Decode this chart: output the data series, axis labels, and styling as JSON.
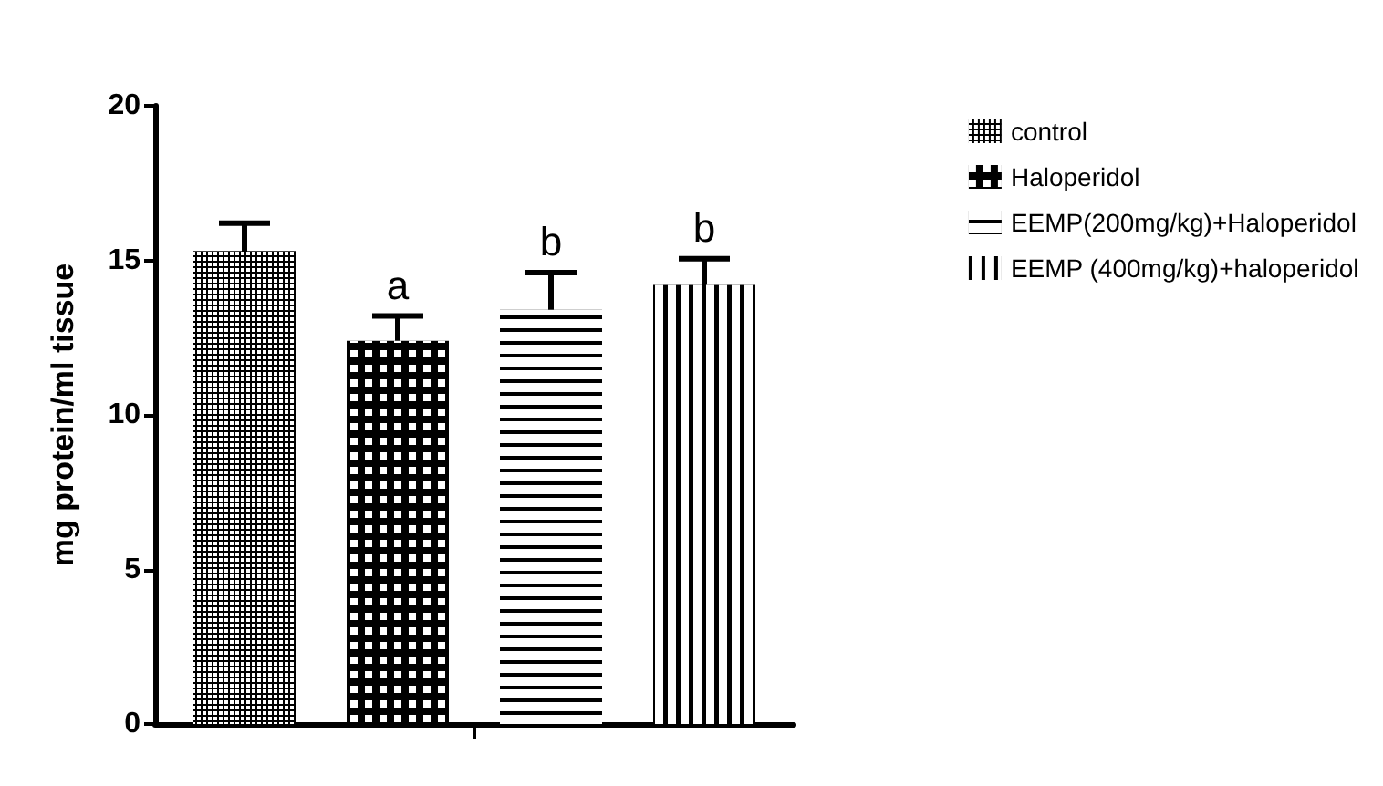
{
  "chart_data": {
    "type": "bar",
    "ylabel": "mg protein/ml tissue",
    "categories": [
      null
    ],
    "series": [
      {
        "name": "control",
        "color": "#000000",
        "values": [
          15.3
        ],
        "errors": [
          0.9
        ]
      },
      {
        "name": "Haloperidol",
        "color": "#000000",
        "values": [
          12.4
        ],
        "errors": [
          0.8
        ],
        "value_labels": [
          "a"
        ]
      },
      {
        "name": "EEMP(200mg/kg)+Haloperidol",
        "color": "#000000",
        "values": [
          13.4
        ],
        "errors": [
          1.2
        ],
        "value_labels": [
          "b"
        ]
      },
      {
        "name": "EEMP (400mg/kg)+haloperidol",
        "color": "#000000",
        "values": [
          14.2
        ],
        "errors": [
          0.85
        ],
        "value_labels": [
          "b"
        ]
      }
    ],
    "ylim": [
      0,
      20
    ],
    "yticks": [
      0,
      5,
      10,
      15,
      20
    ],
    "grid": false,
    "legend": "right"
  }
}
